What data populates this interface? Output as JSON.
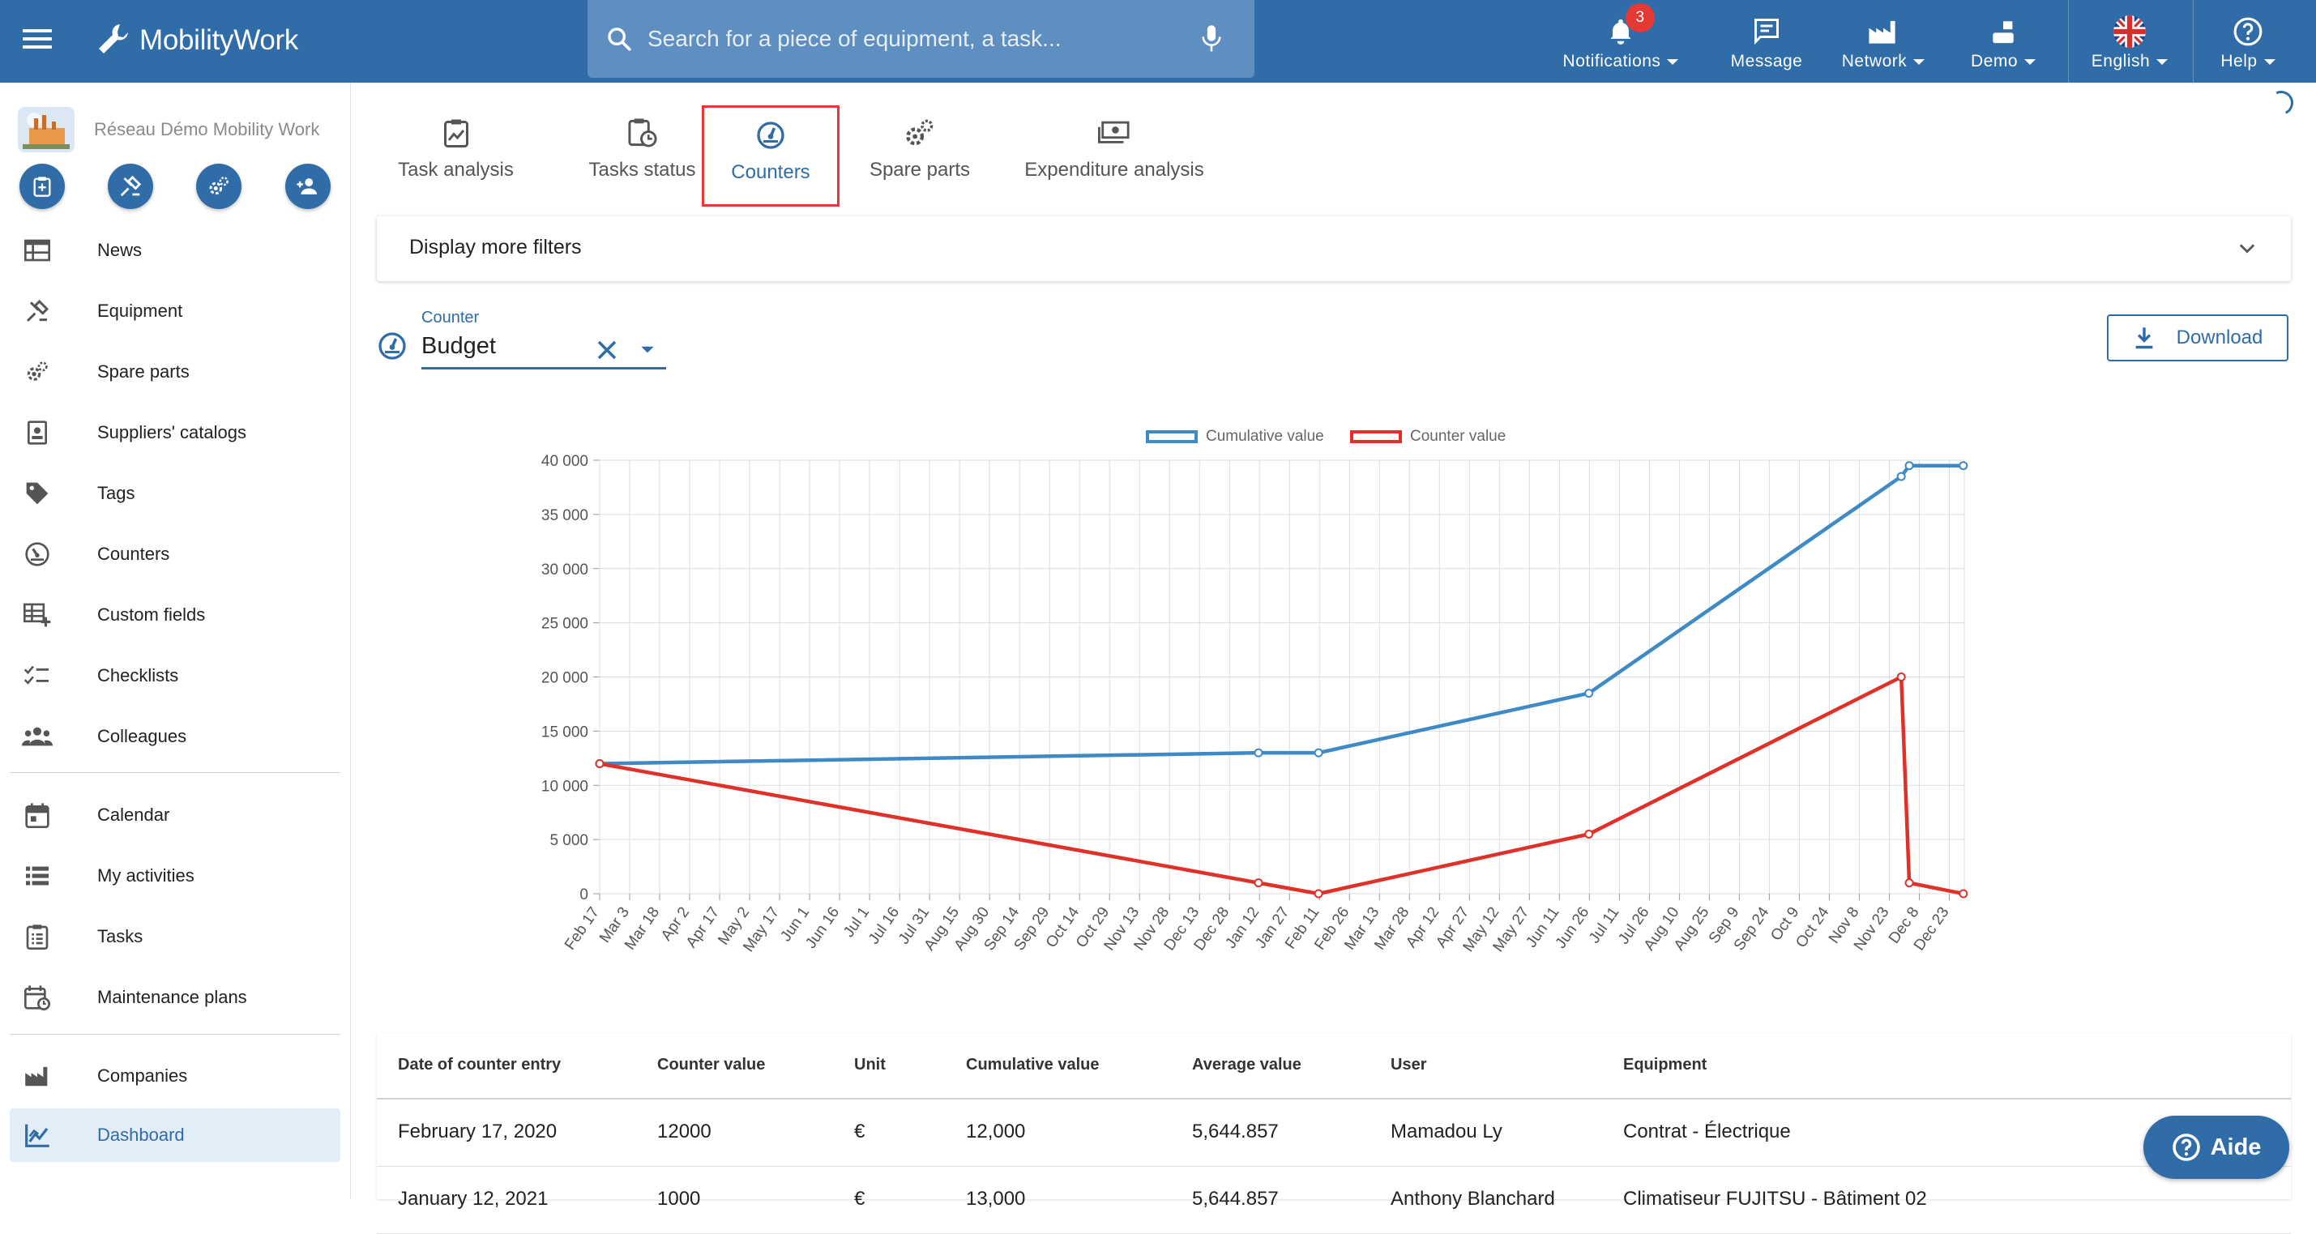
{
  "app": {
    "brand": "MobilityWork",
    "search_placeholder": "Search for a piece of equipment, a task...",
    "accent_color": "#2f6ca8"
  },
  "topnav": {
    "notifications": {
      "label": "Notifications",
      "badge": "3",
      "icon": "bell-icon"
    },
    "message": {
      "label": "Message",
      "icon": "message-icon"
    },
    "network": {
      "label": "Network",
      "icon": "factory-icon"
    },
    "demo": {
      "label": "Demo",
      "icon": "user-icon"
    },
    "language": {
      "label": "English",
      "icon": "uk-flag-icon"
    },
    "help": {
      "label": "Help",
      "icon": "help-icon"
    }
  },
  "sidebar": {
    "network_name": "Réseau Démo Mobility Work",
    "quick_actions": [
      "add-task-icon",
      "add-equipment-icon",
      "add-spare-part-icon",
      "add-colleague-icon"
    ],
    "items": [
      {
        "label": "News",
        "icon": "news-icon"
      },
      {
        "label": "Equipment",
        "icon": "equipment-icon"
      },
      {
        "label": "Spare parts",
        "icon": "spare-parts-icon"
      },
      {
        "label": "Suppliers' catalogs",
        "icon": "catalog-icon"
      },
      {
        "label": "Tags",
        "icon": "tag-icon"
      },
      {
        "label": "Counters",
        "icon": "gauge-icon"
      },
      {
        "label": "Custom fields",
        "icon": "custom-fields-icon"
      },
      {
        "label": "Checklists",
        "icon": "checklist-icon"
      },
      {
        "label": "Colleagues",
        "icon": "colleagues-icon"
      },
      {
        "label": "Calendar",
        "icon": "calendar-icon"
      },
      {
        "label": "My activities",
        "icon": "activities-icon"
      },
      {
        "label": "Tasks",
        "icon": "tasks-icon"
      },
      {
        "label": "Maintenance plans",
        "icon": "maintenance-plans-icon"
      },
      {
        "label": "Companies",
        "icon": "companies-icon"
      },
      {
        "label": "Dashboard",
        "icon": "dashboard-icon",
        "active": true
      }
    ]
  },
  "tabs": [
    {
      "label": "Task analysis",
      "icon": "task-analysis-icon"
    },
    {
      "label": "Tasks status",
      "icon": "tasks-status-icon"
    },
    {
      "label": "Counters",
      "icon": "gauge-icon",
      "active": true
    },
    {
      "label": "Spare parts",
      "icon": "gears-icon"
    },
    {
      "label": "Expenditure analysis",
      "icon": "money-icon"
    }
  ],
  "filters": {
    "label": "Display more filters"
  },
  "counter": {
    "label": "Counter",
    "value": "Budget"
  },
  "download": {
    "label": "Download"
  },
  "chart_data": {
    "type": "line",
    "legend_position": "top-center",
    "grid": true,
    "y_ticks": [
      "40 000",
      "35 000",
      "30 000",
      "25 000",
      "20 000",
      "15 000",
      "10 000",
      "5 000",
      "0"
    ],
    "x_ticks": [
      "Feb 17",
      "Mar 3",
      "Mar 18",
      "Apr 2",
      "Apr 17",
      "May 2",
      "May 17",
      "Jun 1",
      "Jun 16",
      "Jul 1",
      "Jul 16",
      "Jul 31",
      "Aug 15",
      "Aug 30",
      "Sep 14",
      "Sep 29",
      "Oct 14",
      "Oct 29",
      "Nov 13",
      "Nov 28",
      "Dec 13",
      "Dec 28",
      "Jan 12",
      "Jan 27",
      "Feb 11",
      "Feb 26",
      "Mar 13",
      "Mar 28",
      "Apr 12",
      "Apr 27",
      "May 12",
      "May 27",
      "Jun 11",
      "Jun 26",
      "Jul 11",
      "Jul 26",
      "Aug 10",
      "Aug 25",
      "Sep 9",
      "Sep 24",
      "Oct 9",
      "Oct 24",
      "Nov 8",
      "Nov 23",
      "Dec 8",
      "Dec 23"
    ],
    "ylim": [
      0,
      40000
    ],
    "series": [
      {
        "name": "Cumulative value",
        "color": "#3d8ac6",
        "points": [
          [
            "Feb 17",
            12000
          ],
          [
            "Jan 12",
            13000
          ],
          [
            "Feb 11",
            13000
          ],
          [
            "Jun 26",
            18500
          ],
          [
            "Nov 29",
            38500
          ],
          [
            "Dec 3",
            39500
          ],
          [
            "Dec 30",
            39500
          ]
        ]
      },
      {
        "name": "Counter value",
        "color": "#e0302a",
        "points": [
          [
            "Feb 17",
            12000
          ],
          [
            "Jan 12",
            1000
          ],
          [
            "Feb 11",
            0
          ],
          [
            "Jun 26",
            5500
          ],
          [
            "Nov 29",
            20000
          ],
          [
            "Dec 3",
            1000
          ],
          [
            "Dec 30",
            0
          ]
        ]
      }
    ]
  },
  "table": {
    "headers": [
      "Date of counter entry",
      "Counter value",
      "Unit",
      "Cumulative value",
      "Average value",
      "User",
      "Equipment"
    ],
    "rows": [
      [
        "February 17, 2020",
        "12000",
        "€",
        "12,000",
        "5,644.857",
        "Mamadou Ly",
        "Contrat - Électrique"
      ],
      [
        "January 12, 2021",
        "1000",
        "€",
        "13,000",
        "5,644.857",
        "Anthony Blanchard",
        "Climatiseur FUJITSU - Bâtiment 02"
      ]
    ]
  },
  "aide": {
    "label": "Aide"
  }
}
